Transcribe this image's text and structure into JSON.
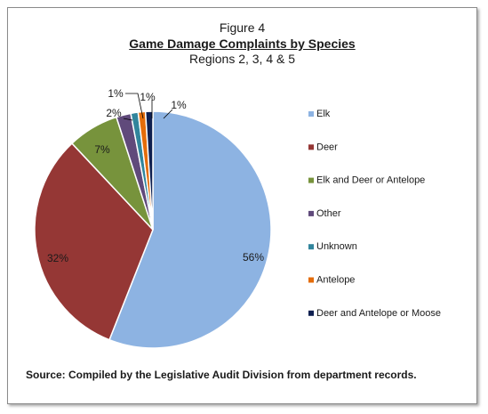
{
  "figure_label": "Figure 4",
  "title": "Game Damage Complaints by Species",
  "subtitle": "Regions 2, 3, 4 & 5",
  "source": "Source:  Compiled by the Legislative Audit Division from department records.",
  "colors": {
    "Elk": "#8db3e2",
    "Deer": "#953735",
    "Elk and Deer or Antelope": "#77933c",
    "Other": "#604a7b",
    "Unknown": "#31859c",
    "Antelope": "#e46c0a",
    "Deer and Antelope or Moose": "#0f2050"
  },
  "chart_data": {
    "type": "pie",
    "title": "Game Damage Complaints by Species",
    "legend_position": "right",
    "categories": [
      "Elk",
      "Deer",
      "Elk and Deer or Antelope",
      "Other",
      "Unknown",
      "Antelope",
      "Deer and Antelope or Moose"
    ],
    "values": [
      56,
      32,
      7,
      2,
      1,
      1,
      1
    ],
    "labels": [
      "56%",
      "32%",
      "7%",
      "2%",
      "1%",
      "1%",
      "1%"
    ]
  }
}
